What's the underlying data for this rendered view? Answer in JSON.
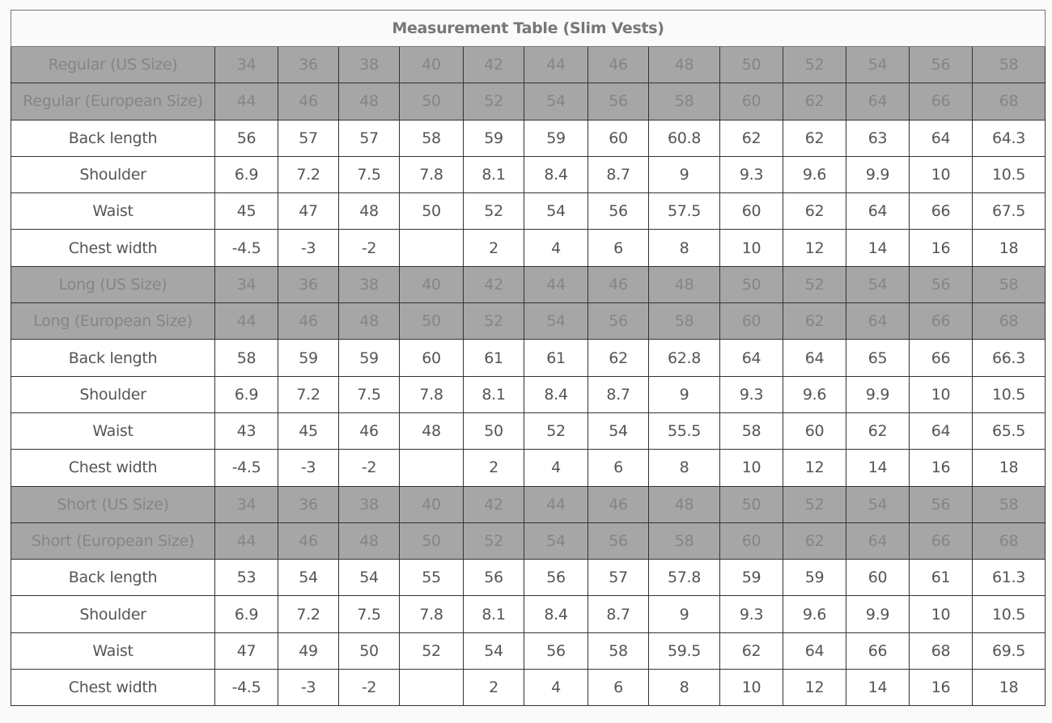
{
  "title": "Measurement Table (Slim Vests)",
  "sections": [
    {
      "rows": [
        {
          "type": "header",
          "label": "Regular (US Size)",
          "values": [
            "34",
            "36",
            "38",
            "40",
            "42",
            "44",
            "46",
            "48",
            "50",
            "52",
            "54",
            "56",
            "58"
          ]
        },
        {
          "type": "header",
          "label": "Regular (European Size)",
          "values": [
            "44",
            "46",
            "48",
            "50",
            "52",
            "54",
            "56",
            "58",
            "60",
            "62",
            "64",
            "66",
            "68"
          ]
        },
        {
          "type": "body",
          "label": "Back length",
          "values": [
            "56",
            "57",
            "57",
            "58",
            "59",
            "59",
            "60",
            "60.8",
            "62",
            "62",
            "63",
            "64",
            "64.3"
          ]
        },
        {
          "type": "body",
          "label": "Shoulder",
          "values": [
            "6.9",
            "7.2",
            "7.5",
            "7.8",
            "8.1",
            "8.4",
            "8.7",
            "9",
            "9.3",
            "9.6",
            "9.9",
            "10",
            "10.5"
          ]
        },
        {
          "type": "body",
          "label": "Waist",
          "values": [
            "45",
            "47",
            "48",
            "50",
            "52",
            "54",
            "56",
            "57.5",
            "60",
            "62",
            "64",
            "66",
            "67.5"
          ]
        },
        {
          "type": "body",
          "label": "Chest width",
          "values": [
            "-4.5",
            "-3",
            "-2",
            "",
            "2",
            "4",
            "6",
            "8",
            "10",
            "12",
            "14",
            "16",
            "18"
          ]
        }
      ]
    },
    {
      "rows": [
        {
          "type": "header",
          "label": "Long (US Size)",
          "values": [
            "34",
            "36",
            "38",
            "40",
            "42",
            "44",
            "46",
            "48",
            "50",
            "52",
            "54",
            "56",
            "58"
          ]
        },
        {
          "type": "header",
          "label": "Long (European Size)",
          "values": [
            "44",
            "46",
            "48",
            "50",
            "52",
            "54",
            "56",
            "58",
            "60",
            "62",
            "64",
            "66",
            "68"
          ]
        },
        {
          "type": "body",
          "label": "Back length",
          "values": [
            "58",
            "59",
            "59",
            "60",
            "61",
            "61",
            "62",
            "62.8",
            "64",
            "64",
            "65",
            "66",
            "66.3"
          ]
        },
        {
          "type": "body",
          "label": "Shoulder",
          "values": [
            "6.9",
            "7.2",
            "7.5",
            "7.8",
            "8.1",
            "8.4",
            "8.7",
            "9",
            "9.3",
            "9.6",
            "9.9",
            "10",
            "10.5"
          ]
        },
        {
          "type": "body",
          "label": "Waist",
          "values": [
            "43",
            "45",
            "46",
            "48",
            "50",
            "52",
            "54",
            "55.5",
            "58",
            "60",
            "62",
            "64",
            "65.5"
          ]
        },
        {
          "type": "body",
          "label": "Chest width",
          "values": [
            "-4.5",
            "-3",
            "-2",
            "",
            "2",
            "4",
            "6",
            "8",
            "10",
            "12",
            "14",
            "16",
            "18"
          ]
        }
      ]
    },
    {
      "rows": [
        {
          "type": "header",
          "label": "Short (US Size)",
          "values": [
            "34",
            "36",
            "38",
            "40",
            "42",
            "44",
            "46",
            "48",
            "50",
            "52",
            "54",
            "56",
            "58"
          ]
        },
        {
          "type": "header",
          "label": "Short (European Size)",
          "values": [
            "44",
            "46",
            "48",
            "50",
            "52",
            "54",
            "56",
            "58",
            "60",
            "62",
            "64",
            "66",
            "68"
          ]
        },
        {
          "type": "body",
          "label": "Back length",
          "values": [
            "53",
            "54",
            "54",
            "55",
            "56",
            "56",
            "57",
            "57.8",
            "59",
            "59",
            "60",
            "61",
            "61.3"
          ]
        },
        {
          "type": "body",
          "label": "Shoulder",
          "values": [
            "6.9",
            "7.2",
            "7.5",
            "7.8",
            "8.1",
            "8.4",
            "8.7",
            "9",
            "9.3",
            "9.6",
            "9.9",
            "10",
            "10.5"
          ]
        },
        {
          "type": "body",
          "label": "Waist",
          "values": [
            "47",
            "49",
            "50",
            "52",
            "54",
            "56",
            "58",
            "59.5",
            "62",
            "64",
            "66",
            "68",
            "69.5"
          ]
        },
        {
          "type": "body",
          "label": "Chest width",
          "values": [
            "-4.5",
            "-3",
            "-2",
            "",
            "2",
            "4",
            "6",
            "8",
            "10",
            "12",
            "14",
            "16",
            "18"
          ]
        }
      ]
    }
  ],
  "colors": {
    "header_bg": "#a6a6a6",
    "header_text": "#858585",
    "body_text": "#555555"
  }
}
